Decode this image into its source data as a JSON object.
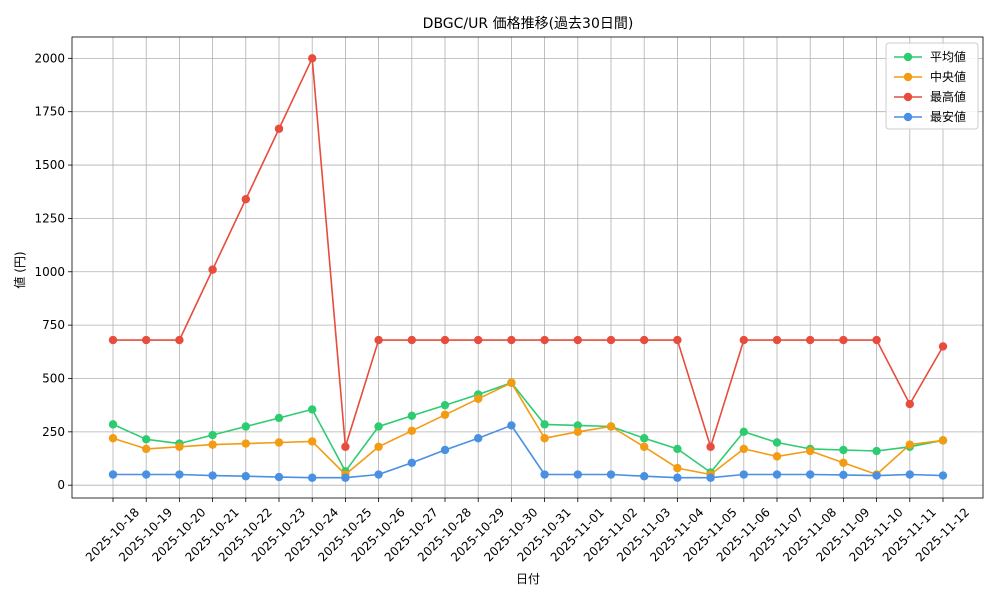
{
  "chart_data": {
    "type": "line",
    "title": "DBGC/UR 価格推移(過去30日間)",
    "xlabel": "日付",
    "ylabel": "値 (円)",
    "ylim": [
      -60,
      2100
    ],
    "yticks": [
      0,
      250,
      500,
      750,
      1000,
      1250,
      1500,
      1750,
      2000
    ],
    "grid": true,
    "legend_position": "top-right",
    "categories": [
      "2025-10-18",
      "2025-10-19",
      "2025-10-20",
      "2025-10-21",
      "2025-10-22",
      "2025-10-23",
      "2025-10-24",
      "2025-10-25",
      "2025-10-26",
      "2025-10-27",
      "2025-10-28",
      "2025-10-29",
      "2025-10-30",
      "2025-10-31",
      "2025-11-01",
      "2025-11-02",
      "2025-11-03",
      "2025-11-04",
      "2025-11-05",
      "2025-11-06",
      "2025-11-07",
      "2025-11-08",
      "2025-11-09",
      "2025-11-10",
      "2025-11-11",
      "2025-11-12"
    ],
    "series": [
      {
        "name": "平均値",
        "color": "#2ecc71",
        "values": [
          285,
          215,
          195,
          235,
          275,
          315,
          355,
          65,
          275,
          325,
          375,
          425,
          480,
          285,
          280,
          275,
          220,
          170,
          60,
          250,
          200,
          170,
          165,
          160,
          180,
          210
        ]
      },
      {
        "name": "中央値",
        "color": "#f39c12",
        "values": [
          220,
          170,
          180,
          190,
          195,
          200,
          205,
          50,
          180,
          255,
          330,
          405,
          480,
          220,
          250,
          275,
          180,
          80,
          50,
          170,
          135,
          160,
          105,
          50,
          190,
          210
        ]
      },
      {
        "name": "最高値",
        "color": "#e74c3c",
        "values": [
          680,
          680,
          680,
          1010,
          1340,
          1670,
          2000,
          180,
          680,
          680,
          680,
          680,
          680,
          680,
          680,
          680,
          680,
          680,
          180,
          680,
          680,
          680,
          680,
          680,
          380,
          650
        ]
      },
      {
        "name": "最安値",
        "color": "#4a90e2",
        "values": [
          50,
          50,
          50,
          45,
          42,
          38,
          35,
          35,
          50,
          105,
          165,
          220,
          280,
          50,
          50,
          50,
          42,
          35,
          35,
          50,
          50,
          50,
          48,
          45,
          50,
          45
        ]
      }
    ]
  }
}
